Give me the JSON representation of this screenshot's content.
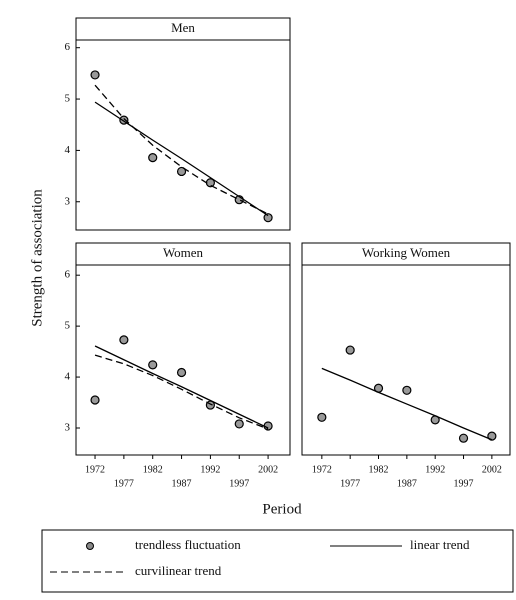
{
  "y_label": "Strength of association",
  "x_label": "Period",
  "chart_data": [
    {
      "type": "panel",
      "title": "Men",
      "x": [
        1972,
        1977,
        1982,
        1987,
        1992,
        1997,
        2002
      ],
      "xlim": [
        1968.7,
        2005.8
      ],
      "ylim": [
        2.45,
        6.15
      ],
      "yticks": [
        3,
        4,
        5,
        6
      ],
      "series": [
        {
          "name": "trendless fluctuation",
          "type": "scatter",
          "color": "#000000",
          "values": [
            5.47,
            4.59,
            3.86,
            3.59,
            3.37,
            3.04,
            2.69
          ]
        },
        {
          "name": "linear trend",
          "type": "line",
          "dashed": false,
          "color": "#000000",
          "values": [
            4.94,
            4.57,
            4.2,
            3.84,
            3.47,
            3.1,
            2.73
          ]
        },
        {
          "name": "curvilinear trend",
          "type": "line",
          "dashed": true,
          "color": "#000000",
          "values": [
            5.27,
            4.62,
            4.1,
            3.68,
            3.32,
            3.04,
            2.76
          ]
        }
      ]
    },
    {
      "type": "panel",
      "title": "Women",
      "x": [
        1972,
        1977,
        1982,
        1987,
        1992,
        1997,
        2002
      ],
      "xlim": [
        1968.7,
        2005.8
      ],
      "ylim": [
        2.47,
        6.2
      ],
      "yticks": [
        3,
        4,
        5,
        6
      ],
      "xticks": [
        1972,
        1977,
        1982,
        1987,
        1992,
        1997,
        2002
      ],
      "series": [
        {
          "name": "trendless fluctuation",
          "type": "scatter",
          "color": "#000000",
          "values": [
            3.55,
            4.73,
            4.24,
            4.09,
            3.45,
            3.08,
            3.04
          ]
        },
        {
          "name": "linear trend",
          "type": "line",
          "dashed": false,
          "color": "#000000",
          "values": [
            4.61,
            4.34,
            4.07,
            3.81,
            3.54,
            3.27,
            3.0
          ]
        },
        {
          "name": "curvilinear trend",
          "type": "line",
          "dashed": true,
          "color": "#000000",
          "values": [
            4.43,
            4.26,
            4.03,
            3.76,
            3.47,
            3.2,
            2.98
          ]
        }
      ]
    },
    {
      "type": "panel",
      "title": "Working Women",
      "x": [
        1972,
        1977,
        1982,
        1987,
        1992,
        1997,
        2002
      ],
      "xlim": [
        1968.5,
        2005.2
      ],
      "ylim": [
        2.47,
        6.2
      ],
      "xticks": [
        1972,
        1977,
        1982,
        1987,
        1992,
        1997,
        2002
      ],
      "series": [
        {
          "name": "trendless fluctuation",
          "type": "scatter",
          "color": "#000000",
          "values": [
            3.21,
            4.53,
            3.78,
            3.74,
            3.16,
            2.8,
            2.84
          ]
        },
        {
          "name": "linear trend",
          "type": "line",
          "dashed": false,
          "color": "#000000",
          "values": [
            4.17,
            3.94,
            3.7,
            3.47,
            3.24,
            3.0,
            2.77
          ]
        }
      ]
    }
  ]
}
